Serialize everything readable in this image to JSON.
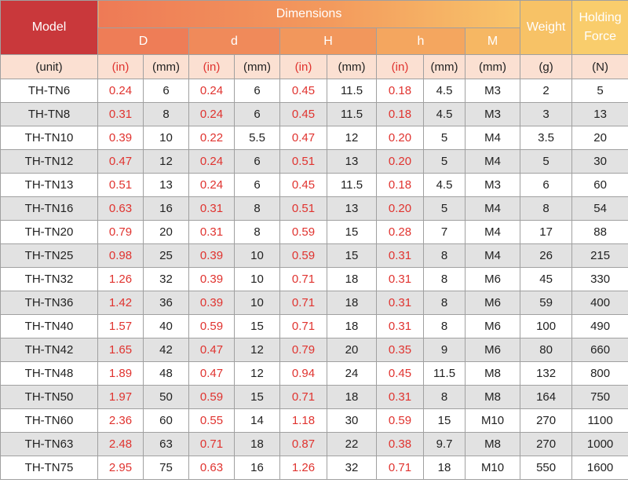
{
  "header": {
    "model": "Model",
    "dimensions": "Dimensions",
    "weight": "Weight",
    "holding_force_line1": "Holding",
    "holding_force_line2": "Force",
    "D": "D",
    "d": "d",
    "H": "H",
    "h": "h",
    "M": "M"
  },
  "units": {
    "model": "(unit)",
    "in": "(in)",
    "mm": "(mm)",
    "g": "(g)",
    "n": "(N)"
  },
  "colors": {
    "model_header": "#c9383b",
    "inch_text": "#e0332f",
    "unit_row": "#fbe0d2",
    "alt_row": "#e2e2e2"
  },
  "rows": [
    [
      "TH-TN6",
      "0.24",
      "6",
      "0.24",
      "6",
      "0.45",
      "11.5",
      "0.18",
      "4.5",
      "M3",
      "2",
      "5"
    ],
    [
      "TH-TN8",
      "0.31",
      "8",
      "0.24",
      "6",
      "0.45",
      "11.5",
      "0.18",
      "4.5",
      "M3",
      "3",
      "13"
    ],
    [
      "TH-TN10",
      "0.39",
      "10",
      "0.22",
      "5.5",
      "0.47",
      "12",
      "0.20",
      "5",
      "M4",
      "3.5",
      "20"
    ],
    [
      "TH-TN12",
      "0.47",
      "12",
      "0.24",
      "6",
      "0.51",
      "13",
      "0.20",
      "5",
      "M4",
      "5",
      "30"
    ],
    [
      "TH-TN13",
      "0.51",
      "13",
      "0.24",
      "6",
      "0.45",
      "11.5",
      "0.18",
      "4.5",
      "M3",
      "6",
      "60"
    ],
    [
      "TH-TN16",
      "0.63",
      "16",
      "0.31",
      "8",
      "0.51",
      "13",
      "0.20",
      "5",
      "M4",
      "8",
      "54"
    ],
    [
      "TH-TN20",
      "0.79",
      "20",
      "0.31",
      "8",
      "0.59",
      "15",
      "0.28",
      "7",
      "M4",
      "17",
      "88"
    ],
    [
      "TH-TN25",
      "0.98",
      "25",
      "0.39",
      "10",
      "0.59",
      "15",
      "0.31",
      "8",
      "M4",
      "26",
      "215"
    ],
    [
      "TH-TN32",
      "1.26",
      "32",
      "0.39",
      "10",
      "0.71",
      "18",
      "0.31",
      "8",
      "M6",
      "45",
      "330"
    ],
    [
      "TH-TN36",
      "1.42",
      "36",
      "0.39",
      "10",
      "0.71",
      "18",
      "0.31",
      "8",
      "M6",
      "59",
      "400"
    ],
    [
      "TH-TN40",
      "1.57",
      "40",
      "0.59",
      "15",
      "0.71",
      "18",
      "0.31",
      "8",
      "M6",
      "100",
      "490"
    ],
    [
      "TH-TN42",
      "1.65",
      "42",
      "0.47",
      "12",
      "0.79",
      "20",
      "0.35",
      "9",
      "M6",
      "80",
      "660"
    ],
    [
      "TH-TN48",
      "1.89",
      "48",
      "0.47",
      "12",
      "0.94",
      "24",
      "0.45",
      "11.5",
      "M8",
      "132",
      "800"
    ],
    [
      "TH-TN50",
      "1.97",
      "50",
      "0.59",
      "15",
      "0.71",
      "18",
      "0.31",
      "8",
      "M8",
      "164",
      "750"
    ],
    [
      "TH-TN60",
      "2.36",
      "60",
      "0.55",
      "14",
      "1.18",
      "30",
      "0.59",
      "15",
      "M10",
      "270",
      "1100"
    ],
    [
      "TH-TN63",
      "2.48",
      "63",
      "0.71",
      "18",
      "0.87",
      "22",
      "0.38",
      "9.7",
      "M8",
      "270",
      "1000"
    ],
    [
      "TH-TN75",
      "2.95",
      "75",
      "0.63",
      "16",
      "1.26",
      "32",
      "0.71",
      "18",
      "M10",
      "550",
      "1600"
    ]
  ]
}
